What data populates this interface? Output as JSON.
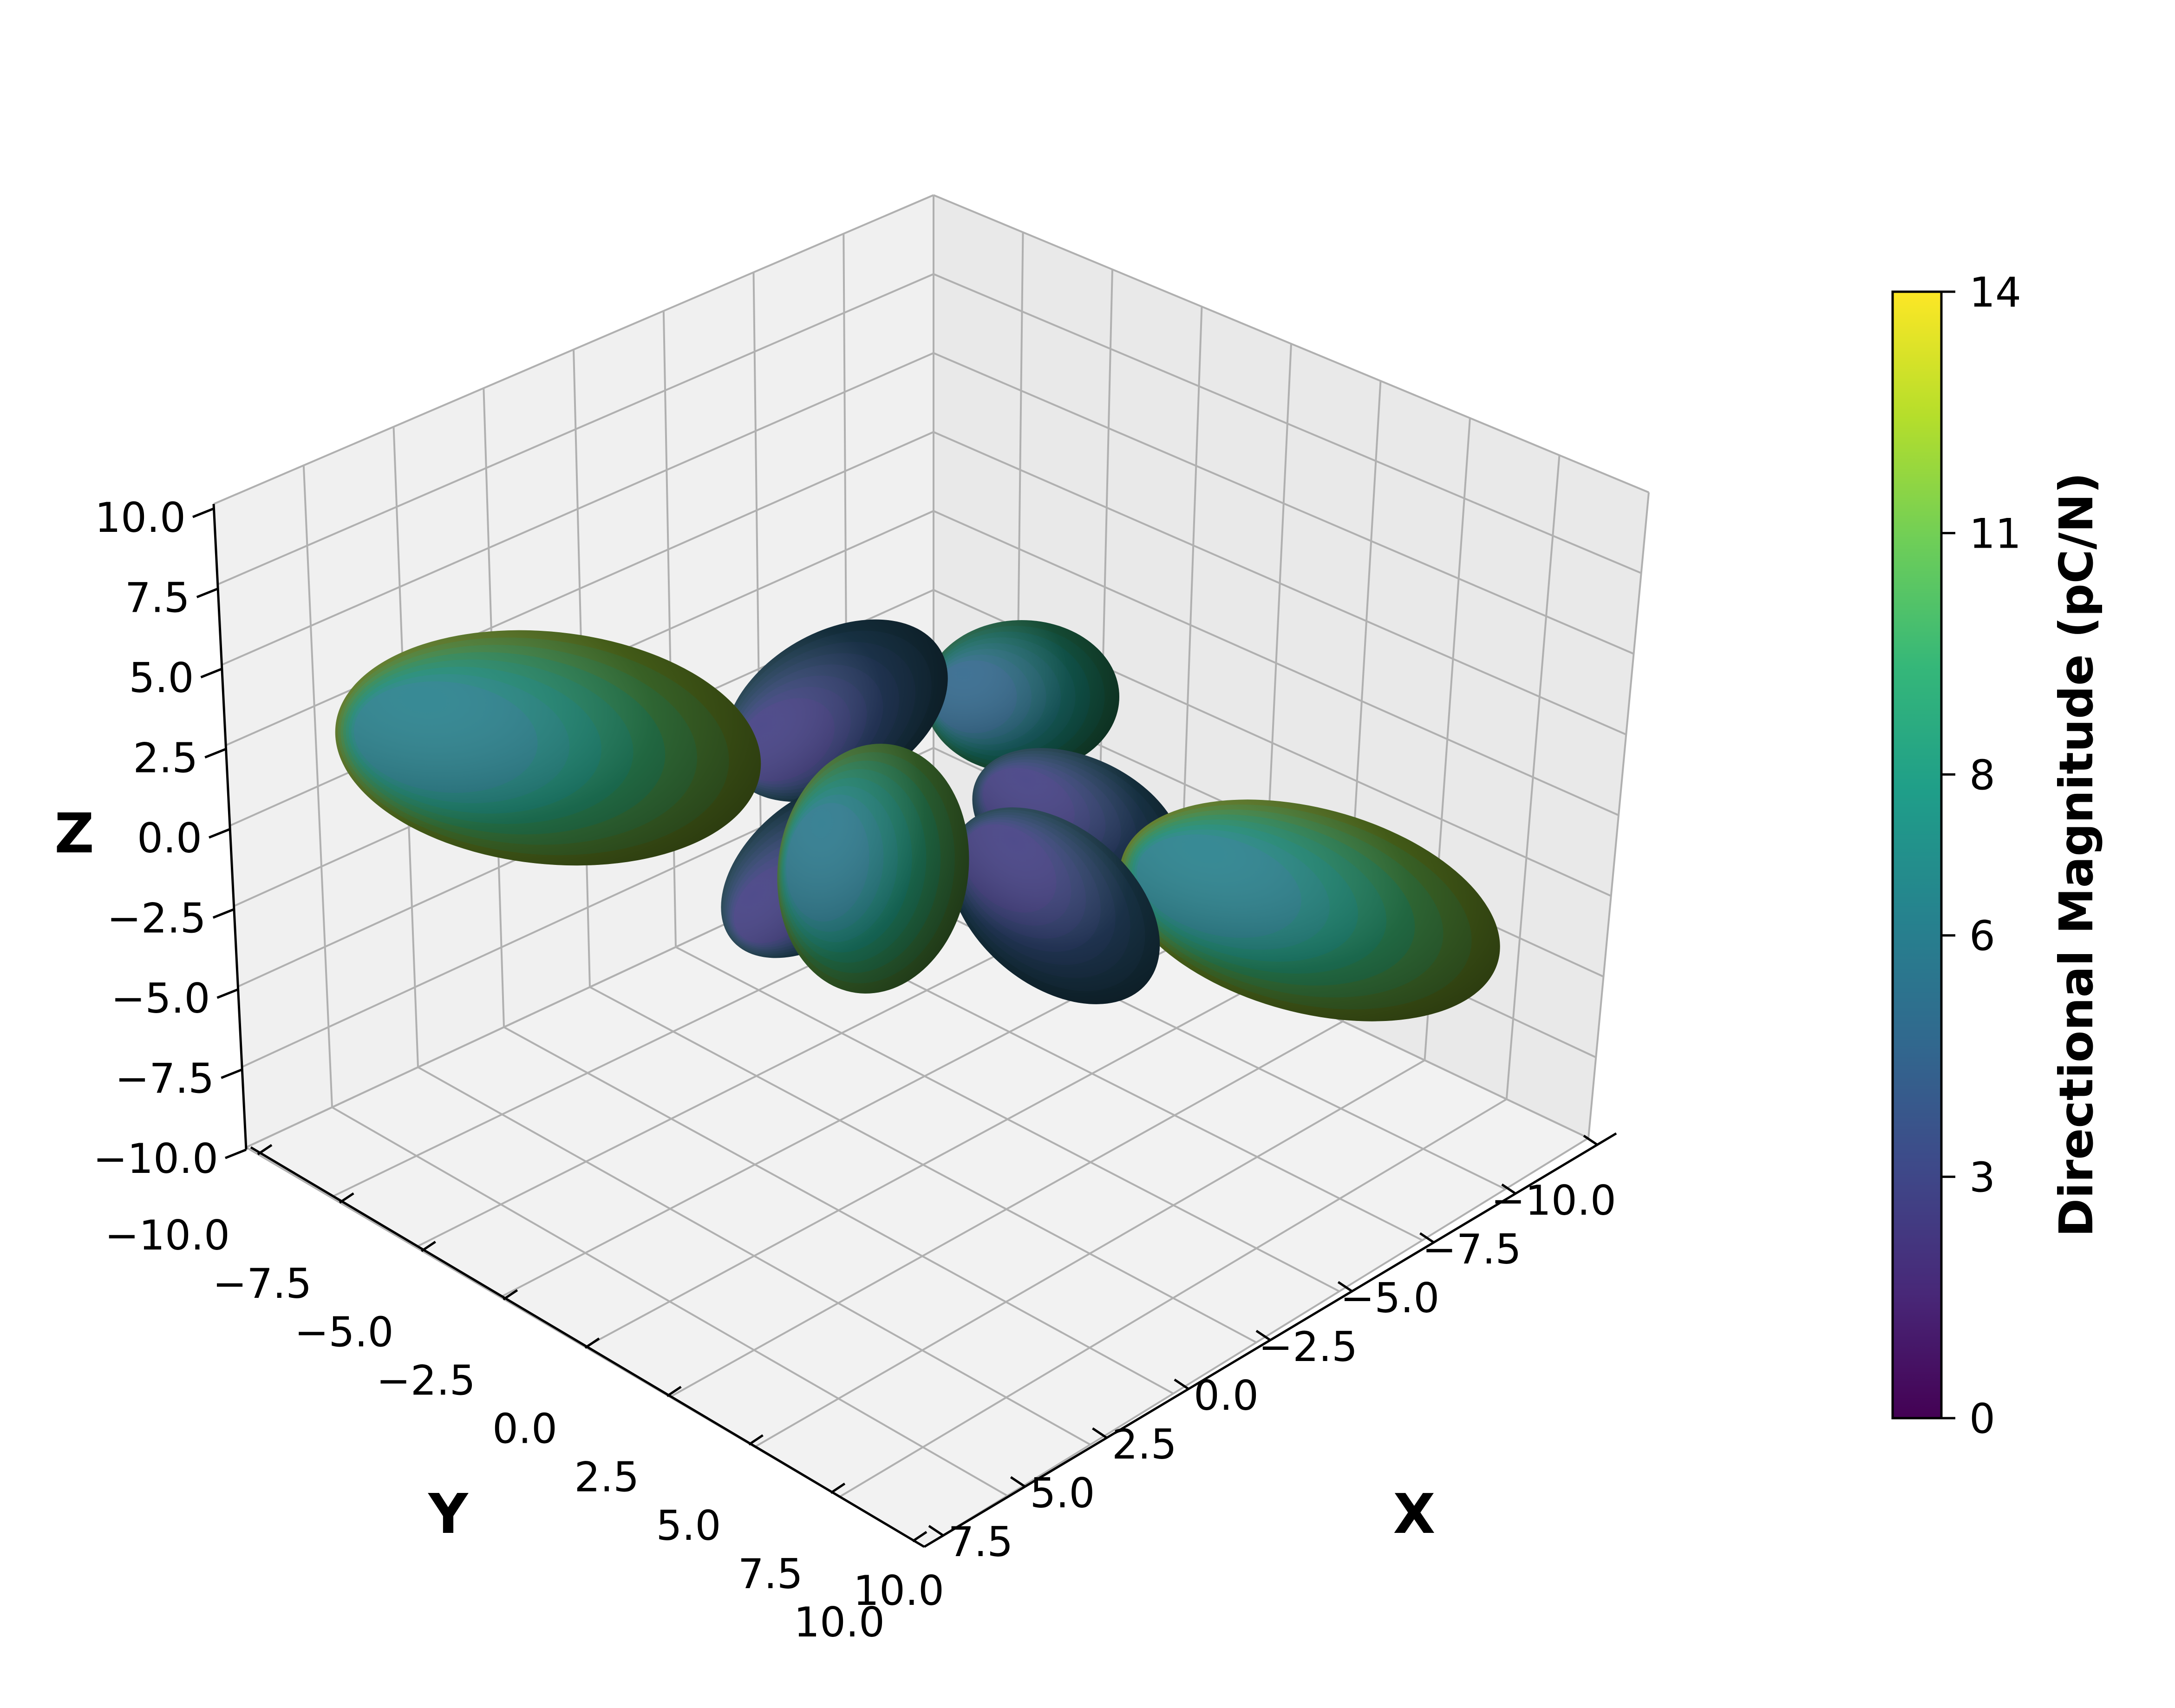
{
  "chart_data": {
    "type": "3d-surface",
    "description_of_marks": "surface (8-lobed directional pattern)",
    "colormap": "viridis",
    "colormap_stops": [
      "#440154",
      "#482878",
      "#3e4989",
      "#31688e",
      "#26828e",
      "#1f9e89",
      "#35b779",
      "#6ece58",
      "#b5de2b",
      "#fde725"
    ],
    "xlabel": "X",
    "ylabel": "Y",
    "zlabel": "Z",
    "xlim": [
      -10,
      10
    ],
    "ylim": [
      -10,
      10
    ],
    "zlim": [
      -10,
      10
    ],
    "x_ticks": [
      "−10.0",
      "−7.5",
      "−5.0",
      "−2.5",
      "0.0",
      "2.5",
      "5.0",
      "7.5",
      "10.0"
    ],
    "y_ticks": [
      "−10.0",
      "−7.5",
      "−5.0",
      "−2.5",
      "0.0",
      "2.5",
      "5.0",
      "7.5",
      "10.0"
    ],
    "z_ticks": [
      "−10.0",
      "−7.5",
      "−5.0",
      "−2.5",
      "0.0",
      "2.5",
      "5.0",
      "7.5",
      "10.0"
    ],
    "grid": true,
    "lobes": [
      {
        "direction": "-Y (left)",
        "peak_value": 12
      },
      {
        "direction": "+Y (right)",
        "peak_value": 12
      },
      {
        "direction": "+X (front)",
        "peak_value": 11
      },
      {
        "direction": "-X (back)",
        "peak_value": 9
      },
      {
        "direction": "diagonal (+X,+Y)",
        "peak_value": 5
      },
      {
        "direction": "diagonal (-X,-Y)",
        "peak_value": 5
      },
      {
        "direction": "diagonal (+X,-Y)",
        "peak_value": 5
      },
      {
        "direction": "diagonal (-X,+Y)",
        "peak_value": 5
      }
    ],
    "colorbar": {
      "label": "Directional Magnitude (pC/N)",
      "range": [
        0,
        14
      ],
      "ticks": [
        "0",
        "3",
        "6",
        "8",
        "11",
        "14"
      ],
      "tick_values": [
        0,
        3,
        6,
        8,
        11,
        14
      ],
      "placement": "right"
    }
  }
}
